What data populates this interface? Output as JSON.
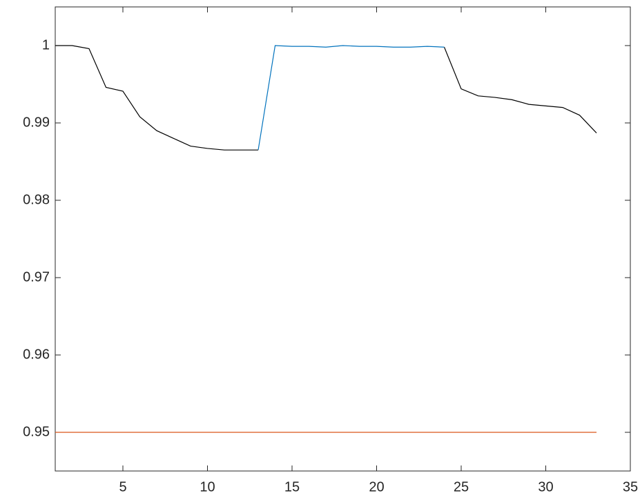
{
  "chart_data": {
    "type": "line",
    "x": [
      1,
      2,
      3,
      4,
      5,
      6,
      7,
      8,
      9,
      10,
      11,
      12,
      13,
      14,
      15,
      16,
      17,
      18,
      19,
      20,
      21,
      22,
      23,
      24,
      25,
      26,
      27,
      28,
      29,
      30,
      31,
      32,
      33
    ],
    "series": [
      {
        "color": "#000000",
        "values": [
          1.0,
          1.0,
          0.9996,
          0.9946,
          0.9941,
          0.9908,
          0.989,
          0.988,
          0.987,
          0.9867,
          0.9865,
          0.9865,
          0.9865,
          null,
          null,
          null,
          null,
          null,
          null,
          null,
          null,
          null,
          null,
          0.9998,
          0.9944,
          0.9935,
          0.9933,
          0.993,
          0.9924,
          0.9922,
          0.992,
          0.991,
          0.9887
        ]
      },
      {
        "color": "#0072bd",
        "values": [
          null,
          null,
          null,
          null,
          null,
          null,
          null,
          null,
          null,
          null,
          null,
          null,
          0.9865,
          1.0,
          0.9999,
          0.9999,
          0.9998,
          1.0,
          0.9999,
          0.9999,
          0.9998,
          0.9998,
          0.9999,
          0.9998,
          null,
          null,
          null,
          null,
          null,
          null,
          null,
          null,
          null
        ]
      },
      {
        "color": "#d95319",
        "values": [
          0.95,
          0.95,
          0.95,
          0.95,
          0.95,
          0.95,
          0.95,
          0.95,
          0.95,
          0.95,
          0.95,
          0.95,
          0.95,
          0.95,
          0.95,
          0.95,
          0.95,
          0.95,
          0.95,
          0.95,
          0.95,
          0.95,
          0.95,
          0.95,
          0.95,
          0.95,
          0.95,
          0.95,
          0.95,
          0.95,
          0.95,
          0.95,
          0.95
        ]
      }
    ],
    "xlim": [
      1,
      35
    ],
    "xticks": [
      5,
      10,
      15,
      20,
      25,
      30,
      35
    ],
    "ylim": [
      0.945,
      1.005
    ],
    "yticks": [
      0.95,
      0.96,
      0.97,
      0.98,
      0.99,
      {
        "value": 1,
        "label": "1"
      }
    ]
  }
}
